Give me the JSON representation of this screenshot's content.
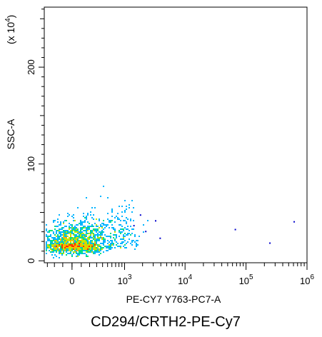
{
  "chart_data": {
    "type": "scatter",
    "title": "",
    "caption": "CD294/CRTH2-PE-Cy7",
    "xlabel": "PE-CY7 Y763-PC7-A",
    "ylabel": "SSC-A",
    "y_multiplier_label": "(x 10",
    "y_multiplier_exp": "4",
    "y_multiplier_close": ")",
    "x_scale": "logicle",
    "xlim": [
      -350,
      1000000
    ],
    "ylim": [
      -2,
      262
    ],
    "y_ticks": [
      {
        "value": 0,
        "label": "0"
      },
      {
        "value": 100,
        "label": "100"
      },
      {
        "value": 200,
        "label": "200"
      }
    ],
    "x_ticks": [
      {
        "value": 0,
        "label": "0",
        "exp": ""
      },
      {
        "value": 1000,
        "label": "10",
        "exp": "3"
      },
      {
        "value": 10000,
        "label": "10",
        "exp": "4"
      },
      {
        "value": 100000,
        "label": "10",
        "exp": "5"
      },
      {
        "value": 1000000,
        "label": "10",
        "exp": "6"
      }
    ],
    "grid": false,
    "legend": "none",
    "density_colors": [
      "#0000cc",
      "#00b4ff",
      "#00e080",
      "#c8e600",
      "#ffb000",
      "#ff3000"
    ],
    "population": {
      "center_x": 20,
      "center_y": 18,
      "x_spread": 180,
      "y_spread": 10,
      "count": 1900
    },
    "outliers": [
      {
        "x": 3200,
        "y": 42
      },
      {
        "x": 3800,
        "y": 24
      },
      {
        "x": 65000,
        "y": 33
      },
      {
        "x": 240000,
        "y": 19
      },
      {
        "x": 600000,
        "y": 41
      },
      {
        "x": 1400,
        "y": 37
      },
      {
        "x": 1800,
        "y": 48
      },
      {
        "x": 2200,
        "y": 31
      }
    ]
  }
}
